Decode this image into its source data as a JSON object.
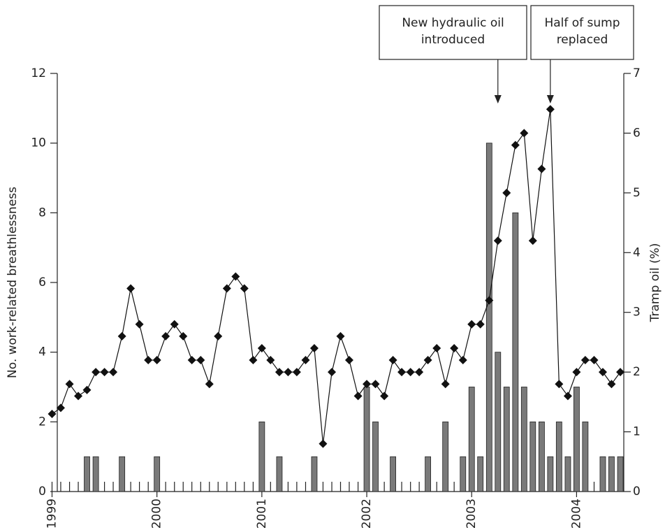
{
  "chart_data": {
    "type": "bar+line",
    "x": [
      1999,
      1999.083,
      1999.167,
      1999.25,
      1999.333,
      1999.417,
      1999.5,
      1999.583,
      1999.667,
      1999.75,
      1999.833,
      1999.917,
      2000,
      2000.083,
      2000.167,
      2000.25,
      2000.333,
      2000.417,
      2000.5,
      2000.583,
      2000.667,
      2000.75,
      2000.833,
      2000.917,
      2001,
      2001.083,
      2001.167,
      2001.25,
      2001.333,
      2001.417,
      2001.5,
      2001.583,
      2001.667,
      2001.75,
      2001.833,
      2001.917,
      2002,
      2002.083,
      2002.167,
      2002.25,
      2002.333,
      2002.417,
      2002.5,
      2002.583,
      2002.667,
      2002.75,
      2002.833,
      2002.917,
      2003,
      2003.083,
      2003.167,
      2003.25,
      2003.333,
      2003.417,
      2003.5,
      2003.583,
      2003.667,
      2003.75,
      2003.833,
      2003.917,
      2004,
      2004.083,
      2004.167,
      2004.25,
      2004.333,
      2004.417
    ],
    "series": [
      {
        "type": "bar",
        "color": "#7a7a7a",
        "values": [
          0,
          0,
          0,
          0,
          1,
          1,
          0,
          0,
          1,
          0,
          0,
          0,
          1,
          0,
          0,
          0,
          0,
          0,
          0,
          0,
          0,
          0,
          0,
          0,
          2,
          0,
          1,
          0,
          0,
          0,
          1,
          0,
          0,
          0,
          0,
          0,
          3,
          2,
          0,
          1,
          0,
          0,
          0,
          1,
          0,
          2,
          0,
          1,
          3,
          1,
          10,
          4,
          3,
          8,
          3,
          2,
          2,
          1,
          2,
          1,
          3,
          2,
          0,
          1,
          1,
          1
        ]
      },
      {
        "type": "line",
        "axis": "y2",
        "color": "#111111",
        "values": [
          1.3,
          1.4,
          1.8,
          1.6,
          1.7,
          2.0,
          2.0,
          2.0,
          2.6,
          3.4,
          2.8,
          2.2,
          2.2,
          2.6,
          2.8,
          2.6,
          2.2,
          2.2,
          1.8,
          2.6,
          3.4,
          3.6,
          3.4,
          2.2,
          2.4,
          2.2,
          2.0,
          2.0,
          2.0,
          2.2,
          2.4,
          0.8,
          2.0,
          2.6,
          2.2,
          1.6,
          1.8,
          1.8,
          1.6,
          2.2,
          2.0,
          2.0,
          2.0,
          2.2,
          2.4,
          1.8,
          2.4,
          2.2,
          2.8,
          2.8,
          3.2,
          4.2,
          5.0,
          5.8,
          6.0,
          4.2,
          5.4,
          6.4,
          1.8,
          1.6,
          2.0,
          2.2,
          2.2,
          2.0,
          1.8,
          2.0
        ]
      }
    ],
    "ylabel": "No. work-related breathlessness",
    "y2label": "Tramp oil (%)",
    "xlim": [
      1999.05,
      2004.45
    ],
    "xticks": [
      1999,
      2000,
      2001,
      2002,
      2003,
      2004
    ],
    "ylim": [
      0,
      12
    ],
    "yticks": [
      0,
      2,
      4,
      6,
      8,
      10,
      12
    ],
    "y2lim": [
      0,
      7
    ],
    "y2ticks": [
      0,
      1,
      2,
      3,
      4,
      5,
      6,
      7
    ],
    "annotations": [
      {
        "lines": [
          "New hydraulic oil",
          "introduced"
        ],
        "x": 2003.25
      },
      {
        "lines": [
          "Half of sump",
          "replaced"
        ],
        "x": 2003.75
      }
    ]
  }
}
